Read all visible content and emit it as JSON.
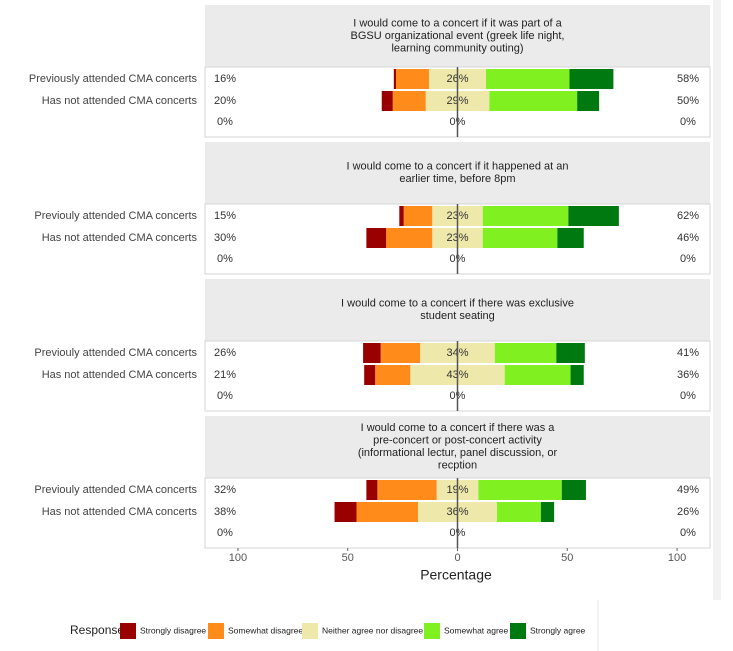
{
  "chart_data": {
    "type": "diverging_bar",
    "xlabel": "Percentage",
    "legend_title": "Response",
    "xlim": [
      -115,
      115
    ],
    "xticks": [
      {
        "value": -100,
        "label": "100"
      },
      {
        "value": -50,
        "label": "50"
      },
      0,
      50,
      100
    ],
    "responses": [
      {
        "name": "Strongly disagree",
        "color": "#990000"
      },
      {
        "name": "Somewhat disagree",
        "color": "#ff8c1a"
      },
      {
        "name": "Neither agree nor disagree",
        "color": "#eee8aa"
      },
      {
        "name": "Somewhat agree",
        "color": "#80f020"
      },
      {
        "name": "Strongly agree",
        "color": "#007a10"
      }
    ],
    "panels": [
      {
        "title": [
          "I would come to a concert if it was part of a",
          "BGSU organizational event (greek life night,",
          "learning community outing)"
        ],
        "categories": [
          "Previously attended CMA concerts",
          "Has not attended CMA concerts",
          null
        ],
        "series": [
          {
            "values": [
              1,
              5,
              0
            ]
          },
          {
            "values": [
              15,
              15,
              0
            ]
          },
          {
            "values": [
              26,
              29,
              0
            ]
          },
          {
            "values": [
              38,
              40,
              0
            ]
          },
          {
            "values": [
              20,
              10,
              0
            ]
          }
        ],
        "low": {
          "values": [
            16,
            20,
            0
          ],
          "value_labels": [
            "16%",
            "20%",
            "0%"
          ]
        },
        "neutral": {
          "values": [
            26,
            29,
            0
          ],
          "value_labels": [
            "26%",
            "29%",
            "0%"
          ]
        },
        "high": {
          "values": [
            58,
            50,
            0
          ],
          "value_labels": [
            "58%",
            "50%",
            "0%"
          ]
        }
      },
      {
        "title": [
          "I would come to a concert if it happened at an",
          "earlier time, before 8pm"
        ],
        "categories": [
          "Previouly attended CMA concerts",
          "Has not attended CMA concerts",
          null
        ],
        "series": [
          {
            "values": [
              2,
              9,
              0
            ]
          },
          {
            "values": [
              13,
              21,
              0
            ]
          },
          {
            "values": [
              23,
              23,
              0
            ]
          },
          {
            "values": [
              39,
              34,
              0
            ]
          },
          {
            "values": [
              23,
              12,
              0
            ]
          }
        ],
        "low": {
          "values": [
            15,
            30,
            0
          ],
          "value_labels": [
            "15%",
            "30%",
            "0%"
          ]
        },
        "neutral": {
          "values": [
            23,
            23,
            0
          ],
          "value_labels": [
            "23%",
            "23%",
            "0%"
          ]
        },
        "high": {
          "values": [
            62,
            46,
            0
          ],
          "value_labels": [
            "62%",
            "46%",
            "0%"
          ]
        }
      },
      {
        "title": [
          "I would come to a concert if there was exclusive",
          "student seating"
        ],
        "categories": [
          "Previouly attended CMA concerts",
          "Has not attended CMA concerts",
          null
        ],
        "series": [
          {
            "values": [
              8,
              5,
              0
            ]
          },
          {
            "values": [
              18,
              16,
              0
            ]
          },
          {
            "values": [
              34,
              43,
              0
            ]
          },
          {
            "values": [
              28,
              30,
              0
            ]
          },
          {
            "values": [
              13,
              6,
              0
            ]
          }
        ],
        "low": {
          "values": [
            26,
            21,
            0
          ],
          "value_labels": [
            "26%",
            "21%",
            "0%"
          ]
        },
        "neutral": {
          "values": [
            34,
            43,
            0
          ],
          "value_labels": [
            "34%",
            "43%",
            "0%"
          ]
        },
        "high": {
          "values": [
            41,
            36,
            0
          ],
          "value_labels": [
            "41%",
            "36%",
            "0%"
          ]
        }
      },
      {
        "title": [
          "I would come to a concert if there was a",
          "pre-concert or post-concert activity",
          "(informational lectur, panel discussion, or",
          "recption"
        ],
        "categories": [
          "Previouly attended CMA concerts",
          "Has not attended CMA concerts",
          null
        ],
        "series": [
          {
            "values": [
              5,
              10,
              0
            ]
          },
          {
            "values": [
              27,
              28,
              0
            ]
          },
          {
            "values": [
              19,
              36,
              0
            ]
          },
          {
            "values": [
              38,
              20,
              0
            ]
          },
          {
            "values": [
              11,
              6,
              0
            ]
          }
        ],
        "low": {
          "values": [
            32,
            38,
            0
          ],
          "value_labels": [
            "32%",
            "38%",
            "0%"
          ]
        },
        "neutral": {
          "values": [
            19,
            36,
            0
          ],
          "value_labels": [
            "19%",
            "36%",
            "0%"
          ]
        },
        "high": {
          "values": [
            49,
            26,
            0
          ],
          "value_labels": [
            "49%",
            "26%",
            "0%"
          ]
        }
      }
    ]
  }
}
